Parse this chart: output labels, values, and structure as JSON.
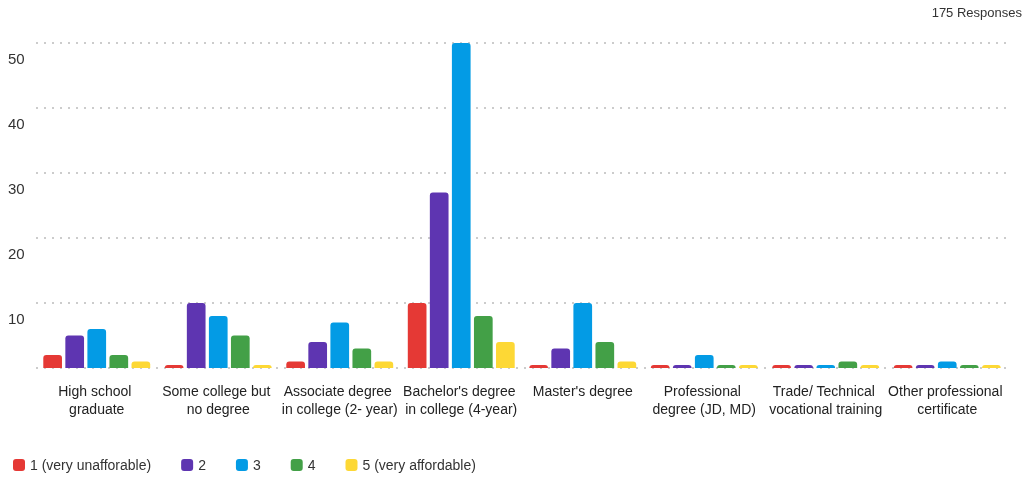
{
  "chart_data": {
    "type": "bar",
    "categories": [
      "High school graduate",
      "Some college but no degree",
      "Associate degree in college (2- year)",
      "Bachelor's degree in college (4-year)",
      "Master's degree",
      "Professional degree (JD, MD)",
      "Trade/ Technical vocational training",
      "Other professional certificate"
    ],
    "series": [
      {
        "name": "1 (very unafforable)",
        "color": "#e53935",
        "values": [
          2,
          0,
          1,
          10,
          0,
          0,
          0,
          0
        ]
      },
      {
        "name": "2",
        "color": "#5e35b1",
        "values": [
          5,
          10,
          4,
          27,
          3,
          0,
          0,
          0
        ]
      },
      {
        "name": "3",
        "color": "#039be5",
        "values": [
          6,
          8,
          7,
          50,
          10,
          2,
          0,
          1
        ]
      },
      {
        "name": "4",
        "color": "#43a047",
        "values": [
          2,
          5,
          3,
          8,
          4,
          0,
          1,
          0
        ]
      },
      {
        "name": "5 (very affordable)",
        "color": "#fdd835",
        "values": [
          1,
          0,
          1,
          4,
          1,
          0,
          0,
          0
        ]
      }
    ],
    "ylim": [
      0,
      50
    ],
    "yticks": [
      {
        "value": 0,
        "label": null
      },
      10,
      20,
      30,
      40,
      50
    ],
    "grid": "y",
    "legend": "bottom left",
    "annotations": [
      "175 Responses"
    ]
  }
}
